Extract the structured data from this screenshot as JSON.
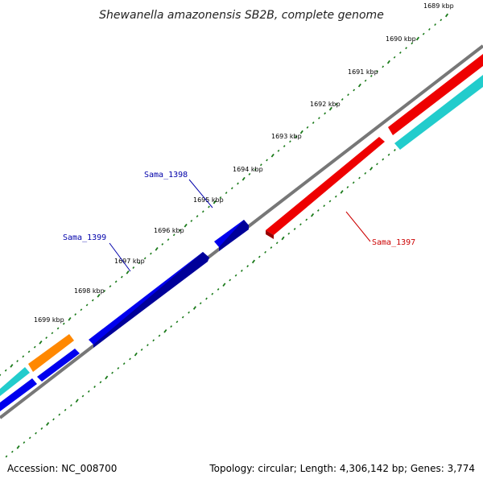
{
  "title": "Shewanella amazonensis SB2B, complete genome",
  "ticks": [
    "1689 kbp",
    "1690 kbp",
    "1691 kbp",
    "1692 kbp",
    "1693 kbp",
    "1694 kbp",
    "1695 kbp",
    "1696 kbp",
    "1697 kbp",
    "1698 kbp",
    "1699 kbp"
  ],
  "gene_labels": [
    {
      "name": "Sama_1398",
      "color": "#0000aa"
    },
    {
      "name": "Sama_1399",
      "color": "#0000aa"
    },
    {
      "name": "Sama_1397",
      "color": "#cc0000"
    }
  ],
  "colors": {
    "forward_genes": "#0000ee",
    "reverse_genes": "#ee0000",
    "cyan_genes": "#22cccc",
    "orange_gene": "#ff8800",
    "backbone": "#777777",
    "gc_dots": "#1a7a1a"
  },
  "footer": {
    "accession": "Accession: NC_008700",
    "summary": "Topology: circular; Length: 4,306,142 bp; Genes: 3,774"
  }
}
